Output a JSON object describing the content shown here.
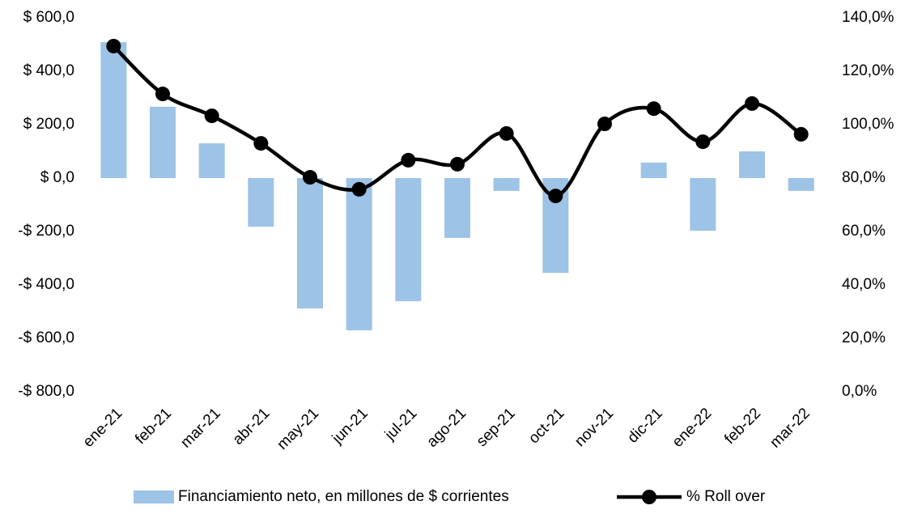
{
  "chart_data": {
    "type": "bar-line",
    "categories": [
      "ene-21",
      "feb-21",
      "mar-21",
      "abr-21",
      "may-21",
      "jun-21",
      "jul-21",
      "ago-21",
      "sep-21",
      "oct-21",
      "nov-21",
      "dic-21",
      "ene-22",
      "feb-22",
      "mar-22"
    ],
    "series": [
      {
        "name": "Financiamiento neto, en millones de $ corrientes",
        "type": "bar",
        "color": "#9dc3e6",
        "values": [
          509,
          267,
          130,
          -182,
          -488,
          -570,
          -461,
          -224,
          -48,
          -355,
          0,
          58,
          -197,
          100,
          -48
        ]
      },
      {
        "name": "% Roll over",
        "type": "line",
        "axis": "y2",
        "color": "#000000",
        "values": [
          129.4,
          111.5,
          103.3,
          93.0,
          80.3,
          75.8,
          86.7,
          85.2,
          96.7,
          73.3,
          100.3,
          106.0,
          93.6,
          107.9,
          96.4
        ]
      }
    ],
    "ylim": [
      -800,
      600
    ],
    "yticks": [
      {
        "value": -800,
        "label": "-$ 800,0"
      },
      {
        "value": -600,
        "label": "-$ 600,0"
      },
      {
        "value": -400,
        "label": "-$ 400,0"
      },
      {
        "value": -200,
        "label": "-$ 200,0"
      },
      {
        "value": 0,
        "label": "$ 0,0"
      },
      {
        "value": 200,
        "label": "$ 200,0"
      },
      {
        "value": 400,
        "label": "$ 400,0"
      },
      {
        "value": 600,
        "label": "$ 600,0"
      }
    ],
    "y2lim": [
      0,
      140
    ],
    "y2ticks": [
      {
        "value": 0,
        "label": "0,0%"
      },
      {
        "value": 20,
        "label": "20,0%"
      },
      {
        "value": 40,
        "label": "40,0%"
      },
      {
        "value": 60,
        "label": "60,0%"
      },
      {
        "value": 80,
        "label": "80,0%"
      },
      {
        "value": 100,
        "label": "100,0%"
      },
      {
        "value": 120,
        "label": "120,0%"
      },
      {
        "value": 140,
        "label": "140,0%"
      }
    ],
    "legend": "bottom"
  }
}
